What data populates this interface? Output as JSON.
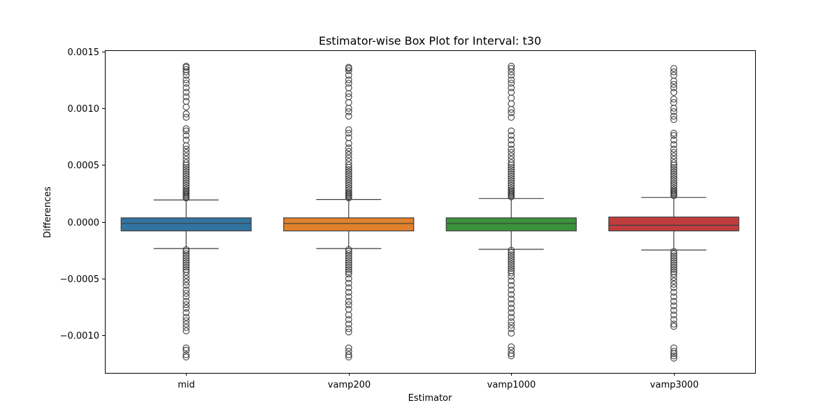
{
  "chart_data": {
    "type": "box",
    "title": "Estimator-wise Box Plot for Interval: t30",
    "xlabel": "Estimator",
    "ylabel": "Differences",
    "categories": [
      "mid",
      "vamp200",
      "vamp1000",
      "vamp3000"
    ],
    "ylim": [
      -0.00133,
      0.00151
    ],
    "yticks": [
      {
        "value": 0.0015,
        "label": "0.0015"
      },
      {
        "value": 0.001,
        "label": "0.0010"
      },
      {
        "value": 0.0005,
        "label": "0.0005"
      },
      {
        "value": 0.0,
        "label": "0.0000"
      },
      {
        "value": -0.0005,
        "label": "−0.0005"
      },
      {
        "value": -0.001,
        "label": "−0.0010"
      }
    ],
    "grid": false,
    "series": [
      {
        "category": "mid",
        "color": "#3274a1",
        "q1": -8e-05,
        "median": -1.5e-05,
        "q3": 3.5e-05,
        "whisker_low": -0.000235,
        "whisker_high": 0.000192,
        "outliers_high": [
          0.00021,
          0.00022,
          0.00023,
          0.00024,
          0.00025,
          0.00026,
          0.00027,
          0.00028,
          0.0003,
          0.00032,
          0.00034,
          0.00036,
          0.00038,
          0.0004,
          0.00042,
          0.00044,
          0.00046,
          0.00048,
          0.0005,
          0.00052,
          0.00055,
          0.00058,
          0.00061,
          0.00064,
          0.00067,
          0.00072,
          0.00076,
          0.0008,
          0.00082,
          0.00092,
          0.00095,
          0.00101,
          0.00106,
          0.0011,
          0.00114,
          0.00118,
          0.00122,
          0.00125,
          0.00129,
          0.00132,
          0.00134,
          0.00136,
          0.00137
        ],
        "outliers_low": [
          -0.000245,
          -0.00026,
          -0.00028,
          -0.0003,
          -0.00032,
          -0.00034,
          -0.00036,
          -0.00038,
          -0.0004,
          -0.00042,
          -0.00044,
          -0.00047,
          -0.0005,
          -0.00053,
          -0.00056,
          -0.0006,
          -0.00063,
          -0.00066,
          -0.0007,
          -0.00073,
          -0.00076,
          -0.0008,
          -0.00084,
          -0.00087,
          -0.0009,
          -0.00093,
          -0.00096,
          -0.00111,
          -0.00113,
          -0.00117,
          -0.00119
        ]
      },
      {
        "category": "vamp200",
        "color": "#e1812c",
        "q1": -8e-05,
        "median": -1.5e-05,
        "q3": 3.5e-05,
        "whisker_low": -0.000235,
        "whisker_high": 0.000197,
        "outliers_high": [
          0.00021,
          0.00022,
          0.00023,
          0.00024,
          0.00025,
          0.00026,
          0.00028,
          0.0003,
          0.00032,
          0.00034,
          0.00036,
          0.00038,
          0.0004,
          0.00042,
          0.00044,
          0.00046,
          0.00048,
          0.0005,
          0.00053,
          0.00056,
          0.00059,
          0.00062,
          0.00065,
          0.00069,
          0.00074,
          0.00078,
          0.00081,
          0.00093,
          0.00097,
          0.001,
          0.00105,
          0.0011,
          0.00113,
          0.00118,
          0.00122,
          0.00125,
          0.00129,
          0.00133,
          0.00135,
          0.00136
        ],
        "outliers_low": [
          -0.000245,
          -0.00026,
          -0.00028,
          -0.0003,
          -0.00032,
          -0.00034,
          -0.00036,
          -0.00038,
          -0.0004,
          -0.00042,
          -0.00044,
          -0.00046,
          -0.0005,
          -0.00054,
          -0.00058,
          -0.00062,
          -0.00066,
          -0.0007,
          -0.00073,
          -0.00077,
          -0.00082,
          -0.00086,
          -0.0009,
          -0.00094,
          -0.00097,
          -0.00111,
          -0.00114,
          -0.00117,
          -0.00119
        ]
      },
      {
        "category": "vamp1000",
        "color": "#3a923a",
        "q1": -8e-05,
        "median": -1.5e-05,
        "q3": 3.5e-05,
        "whisker_low": -0.000242,
        "whisker_high": 0.000205,
        "outliers_high": [
          0.00022,
          0.00023,
          0.00024,
          0.00025,
          0.00026,
          0.00027,
          0.00028,
          0.0003,
          0.00032,
          0.00034,
          0.00036,
          0.00038,
          0.0004,
          0.00042,
          0.00044,
          0.00046,
          0.00048,
          0.0005,
          0.00052,
          0.00055,
          0.00058,
          0.00061,
          0.00064,
          0.00068,
          0.00072,
          0.00076,
          0.0008,
          0.00092,
          0.00096,
          0.00099,
          0.00104,
          0.00109,
          0.00114,
          0.00118,
          0.00122,
          0.00125,
          0.00129,
          0.00132,
          0.00135,
          0.00137
        ],
        "outliers_low": [
          -0.00025,
          -0.00027,
          -0.00029,
          -0.00031,
          -0.00033,
          -0.00035,
          -0.00037,
          -0.00039,
          -0.00041,
          -0.00043,
          -0.00045,
          -0.00048,
          -0.00052,
          -0.00056,
          -0.0006,
          -0.00064,
          -0.00068,
          -0.00072,
          -0.00076,
          -0.0008,
          -0.00084,
          -0.00088,
          -0.00091,
          -0.00094,
          -0.00098,
          -0.0011,
          -0.00113,
          -0.00116,
          -0.00118
        ]
      },
      {
        "category": "vamp3000",
        "color": "#c03d3e",
        "q1": -8e-05,
        "median": -3e-05,
        "q3": 4.2e-05,
        "whisker_low": -0.000248,
        "whisker_high": 0.000215,
        "outliers_high": [
          0.00023,
          0.00024,
          0.00025,
          0.00026,
          0.00027,
          0.00028,
          0.0003,
          0.00032,
          0.00034,
          0.00036,
          0.00038,
          0.0004,
          0.00042,
          0.00044,
          0.00046,
          0.00048,
          0.0005,
          0.00052,
          0.00055,
          0.00058,
          0.00061,
          0.00064,
          0.00068,
          0.00072,
          0.00076,
          0.00078,
          0.0009,
          0.00093,
          0.00097,
          0.001,
          0.00105,
          0.00108,
          0.00114,
          0.00118,
          0.00121,
          0.00124,
          0.00129,
          0.00132,
          0.00135
        ],
        "outliers_low": [
          -0.00026,
          -0.00028,
          -0.0003,
          -0.00032,
          -0.00034,
          -0.00036,
          -0.00038,
          -0.0004,
          -0.00042,
          -0.00044,
          -0.00046,
          -0.00049,
          -0.00052,
          -0.00055,
          -0.00058,
          -0.00062,
          -0.00066,
          -0.0007,
          -0.00074,
          -0.00078,
          -0.00082,
          -0.00086,
          -0.0009,
          -0.00092,
          -0.00111,
          -0.00114,
          -0.00116,
          -0.00118,
          -0.0012
        ]
      }
    ]
  }
}
